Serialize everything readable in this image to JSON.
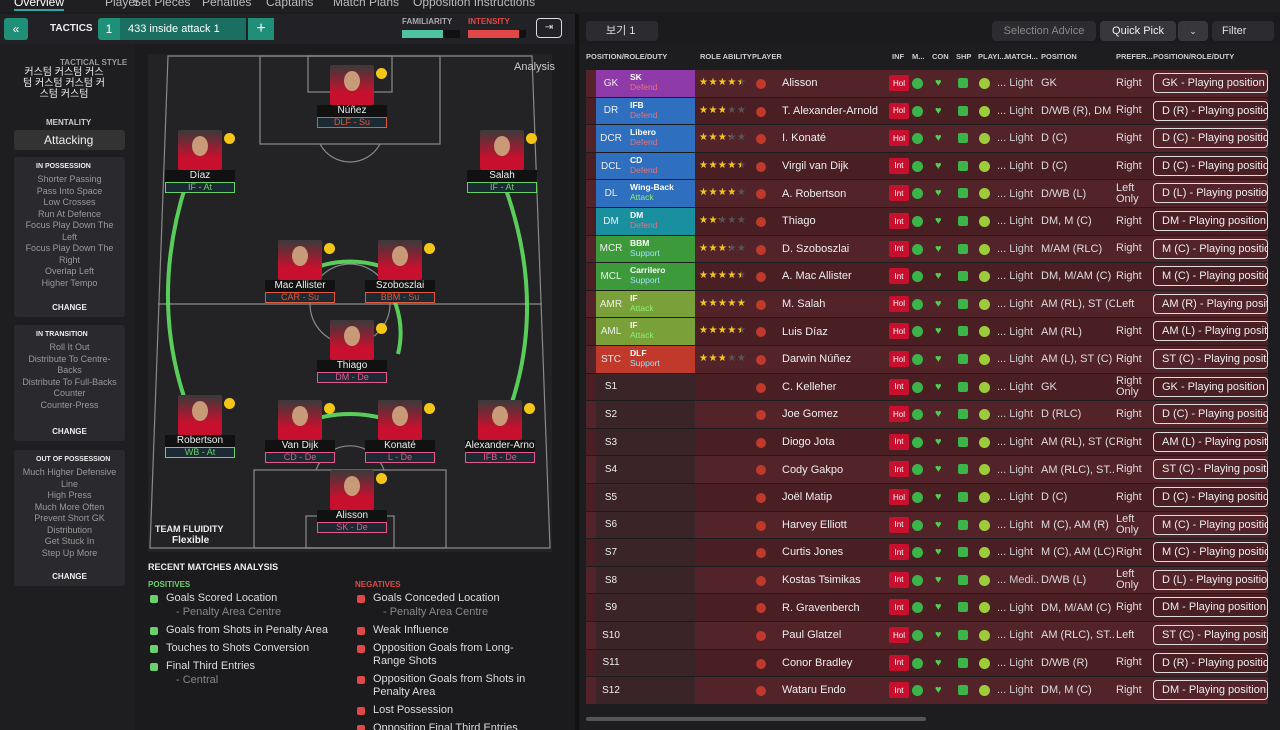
{
  "tabs": [
    "Overview",
    "Player",
    "Set Pieces",
    "Penalties",
    "Captains",
    "Match Plans",
    "Opposition Instructions"
  ],
  "toolbar": {
    "tactics_label": "TACTICS",
    "slot": "1",
    "tactic_name": "433 inside attack 1",
    "familiarity_label": "FAMILIARITY",
    "intensity_label": "INTENSITY",
    "familiarity": 70,
    "intensity": 88
  },
  "sidebar": {
    "style_label": "TACTICAL STYLE",
    "style_name": "커스텀 커스텀 커스텀 커스텀 커스텀 커스텀 커스텀",
    "mentality_label": "MENTALITY",
    "mentality": "Attacking",
    "sections": [
      {
        "title": "IN POSSESSION",
        "items": [
          "Shorter Passing",
          "Pass Into Space",
          "Low Crosses",
          "Run At Defence",
          "Focus Play Down The Left",
          "Focus Play Down The Right",
          "Overlap Left",
          "Higher Tempo"
        ],
        "action": "CHANGE"
      },
      {
        "title": "IN TRANSITION",
        "items": [
          "Roll It Out",
          "Distribute To Centre-Backs",
          "Distribute To Full-Backs",
          "Counter",
          "Counter-Press"
        ],
        "action": "CHANGE"
      },
      {
        "title": "OUT OF POSSESSION",
        "items": [
          "Much Higher Defensive Line",
          "High Press",
          "Much More Often",
          "Prevent Short GK Distribution",
          "Get Stuck In",
          "Step Up More"
        ],
        "action": "CHANGE"
      }
    ]
  },
  "pitch": {
    "analysis": "Analysis",
    "fluidity_label": "TEAM FLUIDITY",
    "fluidity": "Flexible",
    "players": [
      {
        "name": "Núñez",
        "role": "DLF - Su"
      },
      {
        "name": "Díaz",
        "role": "IF - At"
      },
      {
        "name": "Salah",
        "role": "IF - At"
      },
      {
        "name": "Mac Allister",
        "role": "CAR - Su"
      },
      {
        "name": "Szoboszlai",
        "role": "BBM - Su"
      },
      {
        "name": "Thiago",
        "role": "DM - De"
      },
      {
        "name": "Robertson",
        "role": "WB - At"
      },
      {
        "name": "Van Dijk",
        "role": "CD - De"
      },
      {
        "name": "Konaté",
        "role": "L - De"
      },
      {
        "name": "Alexander-Arnold",
        "role": "IFB - De"
      },
      {
        "name": "Alisson",
        "role": "SK - De"
      }
    ]
  },
  "analysis": {
    "title": "RECENT MATCHES ANALYSIS",
    "positives_label": "POSITIVES",
    "negatives_label": "NEGATIVES",
    "positives": [
      {
        "text": "Goals Scored Location",
        "detail": "- Penalty Area Centre"
      },
      {
        "text": "Goals from Shots in Penalty Area"
      },
      {
        "text": "Touches to Shots Conversion"
      },
      {
        "text": "Final Third Entries",
        "detail": "- Central"
      }
    ],
    "negatives": [
      {
        "text": "Goals Conceded Location",
        "detail": "- Penalty Area Centre"
      },
      {
        "text": "Weak Influence"
      },
      {
        "text": "Opposition Goals from Long-Range Shots"
      },
      {
        "text": "Opposition Goals from Shots in Penalty Area"
      },
      {
        "text": "Lost Possession"
      },
      {
        "text": "Opposition Final Third Entries"
      }
    ]
  },
  "squad": {
    "view": "보기 1",
    "selection_advice": "Selection Advice",
    "quick_pick": "Quick Pick",
    "filter": "Filter",
    "headers": [
      "POSITION/ROLE/DUTY",
      "ROLE ABILITY",
      "PLAYER",
      "INF",
      "M...",
      "CON",
      "SHP",
      "PLAYI...",
      "MATCH...",
      "POSITION",
      "PREFER...",
      "POSITION/ROLE/DUTY"
    ],
    "rows": [
      {
        "slot": "GK",
        "role": "SK",
        "duty": "Defend",
        "ability": 4,
        "player": "Alisson",
        "inf": "Hol",
        "match": "... Light",
        "position": "GK",
        "foot": "Right",
        "prd": "GK - Playing position"
      },
      {
        "slot": "DR",
        "role": "IFB",
        "duty": "Defend",
        "ability": 2.5,
        "player": "T. Alexander-Arnold",
        "inf": "Hol",
        "match": "... Light",
        "position": "D/WB (R), DM",
        "foot": "Right",
        "prd": "D (R) - Playing position"
      },
      {
        "slot": "DCR",
        "role": "Libero",
        "duty": "Defend",
        "ability": 3,
        "player": "I. Konaté",
        "inf": "Hol",
        "match": "... Light",
        "position": "D (C)",
        "foot": "Right",
        "prd": "D (C) - Playing position"
      },
      {
        "slot": "DCL",
        "role": "CD",
        "duty": "Defend",
        "ability": 4,
        "player": "Virgil van Dijk",
        "inf": "Int",
        "match": "... Light",
        "position": "D (C)",
        "foot": "Right",
        "prd": "D (C) - Playing position"
      },
      {
        "slot": "DL",
        "role": "Wing-Back",
        "duty": "Attack",
        "ability": 3.5,
        "player": "A. Robertson",
        "inf": "Int",
        "match": "... Light",
        "position": "D/WB (L)",
        "foot": "Left Only",
        "prd": "D (L) - Playing position"
      },
      {
        "slot": "DM",
        "role": "DM",
        "duty": "Defend",
        "ability": 2,
        "player": "Thiago",
        "inf": "Int",
        "match": "... Light",
        "position": "DM, M (C)",
        "foot": "Right",
        "prd": "DM - Playing position"
      },
      {
        "slot": "MCR",
        "role": "BBM",
        "duty": "Support",
        "ability": 3,
        "player": "D. Szoboszlai",
        "inf": "Int",
        "match": "... Light",
        "position": "M/AM (RLC)",
        "foot": "Right",
        "prd": "M (C) - Playing position"
      },
      {
        "slot": "MCL",
        "role": "Carrilero",
        "duty": "Support",
        "ability": 4,
        "player": "A. Mac Allister",
        "inf": "Int",
        "match": "... Light",
        "position": "DM, M/AM (C)",
        "foot": "Right",
        "prd": "M (C) - Playing position"
      },
      {
        "slot": "AMR",
        "role": "IF",
        "duty": "Attack",
        "ability": 4.5,
        "player": "M. Salah",
        "inf": "Hol",
        "match": "... Light",
        "position": "AM (RL), ST (C)",
        "foot": "Left",
        "prd": "AM (R) - Playing position"
      },
      {
        "slot": "AML",
        "role": "IF",
        "duty": "Attack",
        "ability": 4,
        "player": "Luis Díaz",
        "inf": "Hol",
        "match": "... Light",
        "position": "AM (RL)",
        "foot": "Right",
        "prd": "AM (L) - Playing position"
      },
      {
        "slot": "STC",
        "role": "DLF",
        "duty": "Support",
        "ability": 2.5,
        "player": "Darwin Núñez",
        "inf": "Hol",
        "match": "... Light",
        "position": "AM (L), ST (C)",
        "foot": "Right",
        "prd": "ST (C) - Playing position"
      },
      {
        "slot": "S1",
        "player": "C. Kelleher",
        "inf": "Int",
        "match": "... Light",
        "position": "GK",
        "foot": "Right Only",
        "prd": "GK - Playing position"
      },
      {
        "slot": "S2",
        "player": "Joe Gomez",
        "inf": "Hol",
        "match": "... Light",
        "position": "D (RLC)",
        "foot": "Right",
        "prd": "D (C) - Playing position"
      },
      {
        "slot": "S3",
        "player": "Diogo Jota",
        "inf": "Int",
        "match": "... Light",
        "position": "AM (RL), ST (C)",
        "foot": "Right",
        "prd": "AM (L) - Playing position"
      },
      {
        "slot": "S4",
        "player": "Cody Gakpo",
        "inf": "Int",
        "match": "... Light",
        "position": "AM (RLC), ST...",
        "foot": "Right",
        "prd": "ST (C) - Playing position"
      },
      {
        "slot": "S5",
        "player": "Joël Matip",
        "inf": "Hol",
        "match": "... Light",
        "position": "D (C)",
        "foot": "Right",
        "prd": "D (C) - Playing position"
      },
      {
        "slot": "S6",
        "player": "Harvey Elliott",
        "inf": "Int",
        "match": "... Light",
        "position": "M (C), AM (R)",
        "foot": "Left Only",
        "prd": "M (C) - Playing position"
      },
      {
        "slot": "S7",
        "player": "Curtis Jones",
        "inf": "Int",
        "match": "... Light",
        "position": "M (C), AM (LC)",
        "foot": "Right",
        "prd": "M (C) - Playing position"
      },
      {
        "slot": "S8",
        "player": "Kostas Tsimikas",
        "inf": "Int",
        "match": "... Medi...",
        "position": "D/WB (L)",
        "foot": "Left Only",
        "prd": "D (L) - Playing position"
      },
      {
        "slot": "S9",
        "player": "R. Gravenberch",
        "inf": "Int",
        "match": "... Light",
        "position": "DM, M/AM (C)",
        "foot": "Right",
        "prd": "DM - Playing position"
      },
      {
        "slot": "S10",
        "player": "Paul Glatzel",
        "inf": "Hol",
        "match": "... Light",
        "position": "AM (RLC), ST...",
        "foot": "Left",
        "prd": "ST (C) - Playing position"
      },
      {
        "slot": "S11",
        "player": "Conor Bradley",
        "inf": "Int",
        "match": "... Light",
        "position": "D/WB (R)",
        "foot": "Right",
        "prd": "D (R) - Playing position"
      },
      {
        "slot": "S12",
        "player": "Wataru Endo",
        "inf": "Int",
        "match": "... Light",
        "position": "DM, M (C)",
        "foot": "Right",
        "prd": "DM - Playing position"
      }
    ]
  }
}
